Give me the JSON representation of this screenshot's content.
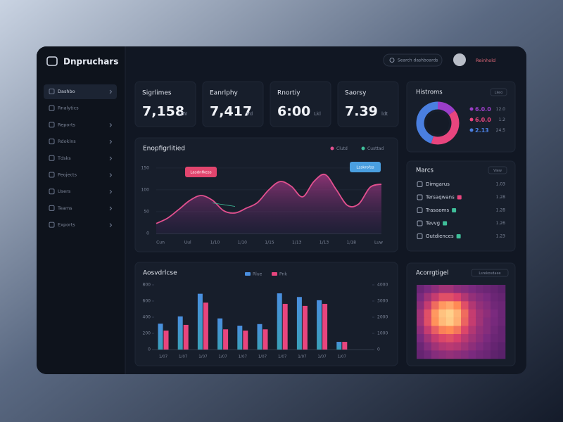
{
  "header": {
    "brand": "Dnpruchars",
    "search": "Search dashboards",
    "user": "Reinhold"
  },
  "sidebar": {
    "items": [
      "Dashbo",
      "Rnalytics",
      "Reports",
      "Rdoklns",
      "Tdsks",
      "Peojects",
      "Users",
      "Teams",
      "Exports"
    ]
  },
  "kpis": [
    {
      "title": "Sigrlimes",
      "value": "7,158",
      "unit": "UW"
    },
    {
      "title": "Eanrlphy",
      "value": "7,417",
      "unit": "Vd"
    },
    {
      "title": "Rnortiy",
      "value": "6:00",
      "unit": "Lkl"
    },
    {
      "title": "Saorsy",
      "value": "7.39",
      "unit": "ldt"
    }
  ],
  "panels": {
    "markets": {
      "title": "Marcs",
      "button": "View",
      "rows": [
        {
          "name": "Dimgarus",
          "value": "1.03"
        },
        {
          "name": "Tersaqwans",
          "value": "1.28"
        },
        {
          "name": "Trasaoms",
          "value": "1.28"
        },
        {
          "name": "Tevvg",
          "value": "1.26"
        },
        {
          "name": "Outdiences",
          "value": "1.23"
        }
      ]
    }
  },
  "chart_data": [
    {
      "type": "line",
      "title": "Enopfigrlitied",
      "series": [
        {
          "name": "Clutd",
          "color": "#e2508f",
          "values": [
            23,
            35,
            55,
            76,
            87,
            76,
            52,
            47,
            58,
            71,
            100,
            119,
            108,
            84,
            119,
            135,
            100,
            64,
            68,
            106,
            113
          ]
        },
        {
          "name": "Custtad",
          "color": "#3fbf9a",
          "values": [
            null,
            null,
            null,
            null,
            null,
            70,
            66,
            62,
            null,
            null,
            null,
            null,
            null,
            null,
            null,
            null,
            null,
            null,
            null,
            null,
            null
          ]
        }
      ],
      "x_tick_labels": [
        "Cun",
        "Uul",
        "1/10",
        "1/10",
        "1/15",
        "1/13",
        "1/13",
        "1/18",
        "Luw"
      ],
      "annotations": [
        "Lasdnfkess",
        "Lsskrofss"
      ],
      "ylim": [
        0,
        160
      ],
      "yticks": [
        0,
        50,
        100,
        150
      ],
      "grid": true
    },
    {
      "type": "bar",
      "title": "Aosvdrlcse",
      "categories": [
        "1/07",
        "1/07",
        "1/07",
        "1/07",
        "1/07",
        "1/07",
        "1/07",
        "1/07",
        "1/07",
        "1/07"
      ],
      "series": [
        {
          "name": "Rlue",
          "color": "#4a8fe0",
          "values": [
            320,
            410,
            690,
            385,
            295,
            315,
            695,
            650,
            610,
            95
          ]
        },
        {
          "name": "Pnk",
          "color": "#e8457e",
          "values": [
            235,
            305,
            580,
            250,
            235,
            250,
            565,
            540,
            565,
            95
          ]
        }
      ],
      "ylim": [
        0,
        800
      ],
      "yticks": [
        0,
        200,
        400,
        600,
        800
      ],
      "y2lim": [
        0,
        4000
      ],
      "y2ticks": [
        0,
        1000,
        2000,
        3000,
        4000
      ],
      "grid": false
    },
    {
      "type": "pie",
      "title": "Histroms",
      "button": "Lkeo",
      "categories": [
        "6.0.0",
        "6.0.0",
        "2.13"
      ],
      "values": [
        15,
        40,
        45
      ],
      "colors": [
        "#9b3ec8",
        "#e8457e",
        "#4a7fe0"
      ],
      "legend_values": [
        "12.0",
        "1.2",
        "24.5"
      ]
    },
    {
      "type": "heatmap",
      "title": "Acorrgtigel",
      "button": "Lsrekosdaee",
      "zlim": [
        0,
        100
      ],
      "colorscale": [
        "#2e1650",
        "#7a2a7e",
        "#d8406c",
        "#ff8a55",
        "#ffd08a"
      ],
      "values": [
        [
          20,
          25,
          30,
          35,
          35,
          30,
          28,
          25,
          22,
          20,
          18,
          15
        ],
        [
          25,
          35,
          45,
          55,
          55,
          50,
          40,
          32,
          28,
          25,
          20,
          18
        ],
        [
          30,
          45,
          65,
          80,
          85,
          75,
          55,
          40,
          32,
          28,
          22,
          20
        ],
        [
          35,
          55,
          80,
          95,
          100,
          90,
          65,
          45,
          35,
          30,
          25,
          20
        ],
        [
          35,
          55,
          78,
          92,
          98,
          88,
          62,
          45,
          35,
          28,
          24,
          20
        ],
        [
          30,
          45,
          60,
          72,
          75,
          68,
          52,
          40,
          32,
          28,
          22,
          18
        ],
        [
          25,
          35,
          45,
          52,
          55,
          50,
          42,
          35,
          30,
          25,
          20,
          18
        ],
        [
          20,
          28,
          35,
          40,
          42,
          40,
          35,
          30,
          26,
          22,
          18,
          15
        ],
        [
          18,
          22,
          28,
          30,
          32,
          30,
          28,
          25,
          22,
          20,
          16,
          14
        ]
      ]
    }
  ]
}
